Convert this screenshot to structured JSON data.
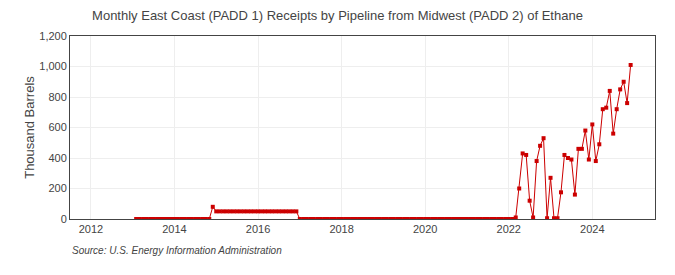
{
  "chart_data": {
    "type": "line",
    "title": "Monthly East Coast (PADD 1) Receipts by Pipeline from Midwest (PADD 2) of Ethane",
    "ylabel": "Thousand Barrels",
    "annotations": [
      "Source: U.S. Energy Information Administration"
    ],
    "color": "#cc0000",
    "marker": "square",
    "grid": true,
    "x": [
      2013.083,
      2013.167,
      2013.25,
      2013.333,
      2013.417,
      2013.5,
      2013.583,
      2013.667,
      2013.75,
      2013.833,
      2013.917,
      2014.0,
      2014.083,
      2014.167,
      2014.25,
      2014.333,
      2014.417,
      2014.5,
      2014.583,
      2014.667,
      2014.75,
      2014.833,
      2014.917,
      2015.0,
      2015.083,
      2015.167,
      2015.25,
      2015.333,
      2015.417,
      2015.5,
      2015.583,
      2015.667,
      2015.75,
      2015.833,
      2015.917,
      2016.0,
      2016.083,
      2016.167,
      2016.25,
      2016.333,
      2016.417,
      2016.5,
      2016.583,
      2016.667,
      2016.75,
      2016.833,
      2016.917,
      2017.0,
      2017.083,
      2017.167,
      2017.25,
      2017.333,
      2017.417,
      2017.5,
      2017.583,
      2017.667,
      2017.75,
      2017.833,
      2017.917,
      2018.0,
      2018.083,
      2018.167,
      2018.25,
      2018.333,
      2018.417,
      2018.5,
      2018.583,
      2018.667,
      2018.75,
      2018.833,
      2018.917,
      2019.0,
      2019.083,
      2019.167,
      2019.25,
      2019.333,
      2019.417,
      2019.5,
      2019.583,
      2019.667,
      2019.75,
      2019.833,
      2019.917,
      2020.0,
      2020.083,
      2020.167,
      2020.25,
      2020.333,
      2020.417,
      2020.5,
      2020.583,
      2020.667,
      2020.75,
      2020.833,
      2020.917,
      2021.0,
      2021.083,
      2021.167,
      2021.25,
      2021.333,
      2021.417,
      2021.5,
      2021.583,
      2021.667,
      2021.75,
      2021.833,
      2021.917,
      2022.0,
      2022.083,
      2022.167,
      2022.25,
      2022.333,
      2022.417,
      2022.5,
      2022.583,
      2022.667,
      2022.75,
      2022.833,
      2022.917,
      2023.0,
      2023.083,
      2023.167,
      2023.25,
      2023.333,
      2023.417,
      2023.5,
      2023.583,
      2023.667,
      2023.75,
      2023.833,
      2023.917,
      2024.0,
      2024.083,
      2024.167,
      2024.25,
      2024.333,
      2024.417,
      2024.5,
      2024.583,
      2024.667,
      2024.75,
      2024.833,
      2024.917
    ],
    "values": [
      0,
      0,
      0,
      0,
      0,
      0,
      0,
      0,
      0,
      0,
      0,
      0,
      0,
      0,
      0,
      0,
      0,
      0,
      0,
      0,
      0,
      0,
      80,
      50,
      50,
      50,
      50,
      50,
      50,
      50,
      50,
      50,
      50,
      50,
      50,
      50,
      50,
      50,
      50,
      50,
      50,
      50,
      50,
      50,
      50,
      50,
      50,
      0,
      0,
      0,
      0,
      0,
      0,
      0,
      0,
      0,
      0,
      0,
      0,
      0,
      0,
      0,
      0,
      0,
      0,
      0,
      0,
      0,
      0,
      0,
      0,
      0,
      0,
      0,
      0,
      0,
      0,
      0,
      0,
      0,
      0,
      0,
      0,
      0,
      0,
      0,
      0,
      0,
      0,
      0,
      0,
      0,
      0,
      0,
      0,
      0,
      0,
      0,
      0,
      0,
      0,
      0,
      0,
      0,
      0,
      0,
      0,
      0,
      0,
      10,
      200,
      430,
      420,
      120,
      10,
      380,
      480,
      530,
      5,
      270,
      5,
      5,
      175,
      420,
      400,
      390,
      160,
      460,
      460,
      580,
      390,
      620,
      380,
      490,
      720,
      730,
      840,
      560,
      720,
      850,
      900,
      760,
      1010
    ],
    "xlim": [
      2011.5,
      2025.5
    ],
    "xticks": [
      2012,
      2014,
      2016,
      2018,
      2020,
      2022,
      2024
    ],
    "ylim": [
      0,
      1200
    ],
    "yticks": [
      0,
      200,
      400,
      600,
      800,
      {
        "value": 1000,
        "label": "1,000"
      },
      {
        "value": 1200,
        "label": "1,200"
      }
    ]
  }
}
